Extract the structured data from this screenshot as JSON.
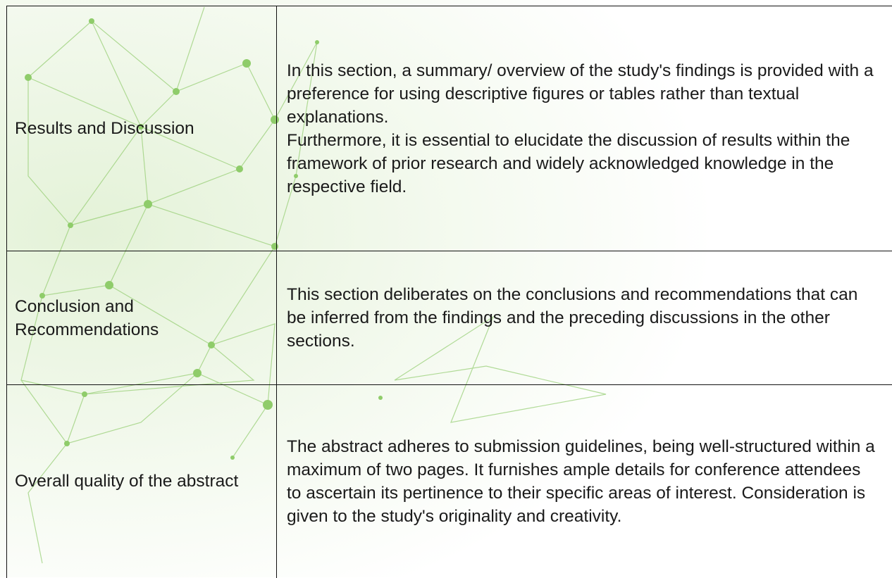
{
  "table": {
    "rows": [
      {
        "label": "Results and Discussion",
        "paragraphs": [
          "In this section, a summary/ overview of the study's findings is provided with a preference for using descriptive figures or tables rather than textual explanations.",
          "Furthermore, it is essential to elucidate the discussion of results within the framework of prior research and widely acknowledged knowledge in the respective field."
        ]
      },
      {
        "label": "Conclusion and Recommendations",
        "paragraphs": [
          "This section deliberates on the conclusions and recommendations that can be inferred from the findings and the preceding discussions in the other sections."
        ]
      },
      {
        "label": "Overall quality of the abstract",
        "paragraphs": [
          "The abstract adheres to submission guidelines, being well-structured within a maximum of two pages. It furnishes ample details for conference attendees to ascertain its pertinence to their specific areas of interest. Consideration is given to the study's originality and creativity."
        ]
      }
    ]
  }
}
